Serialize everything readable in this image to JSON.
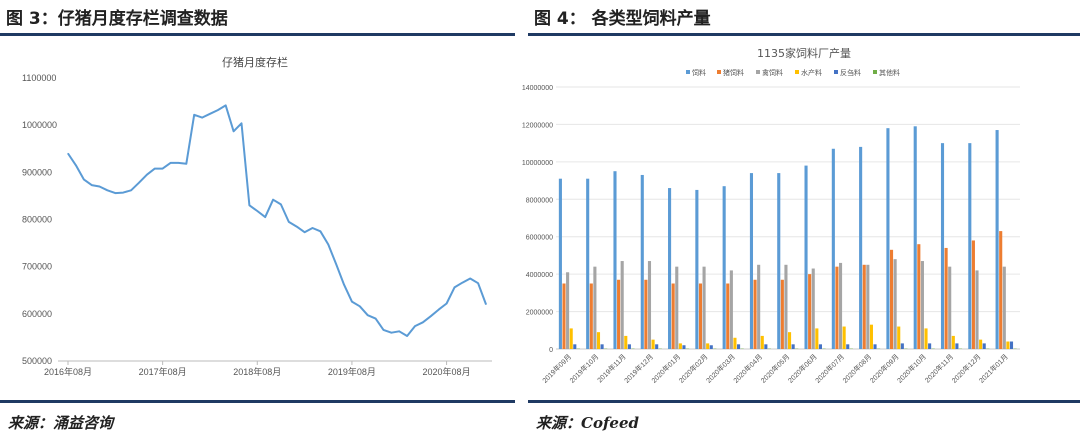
{
  "left": {
    "figure_title": "图 3：仔猪月度存栏调查数据",
    "source": "来源：涌益咨询",
    "chart_data": {
      "type": "line",
      "title": "仔猪月度存栏",
      "xlabel": "",
      "ylabel": "",
      "ylim": [
        500000,
        1100000
      ],
      "yticks": [
        500000,
        600000,
        700000,
        800000,
        900000,
        1000000,
        1100000
      ],
      "ytick_labels": [
        "500000",
        "600000",
        "700000",
        "800000",
        "900000",
        "1000000",
        "1100000"
      ],
      "xtick_labels": [
        "2016年08月",
        "2017年08月",
        "2018年08月",
        "2019年08月",
        "2020年08月"
      ],
      "xtick_index": [
        0,
        12,
        24,
        36,
        48
      ],
      "x_count": 54,
      "series": [
        {
          "color": "#5b9bd5",
          "values": [
            940000,
            915000,
            885000,
            873000,
            870000,
            862000,
            856000,
            857000,
            862000,
            878000,
            895000,
            908000,
            908000,
            920000,
            920000,
            918000,
            1022000,
            1016000,
            1024000,
            1032000,
            1042000,
            987000,
            1004000,
            830000,
            818000,
            805000,
            842000,
            832000,
            795000,
            785000,
            773000,
            782000,
            775000,
            747000,
            705000,
            662000,
            626000,
            616000,
            597000,
            590000,
            566000,
            560000,
            563000,
            553000,
            574000,
            582000,
            595000,
            609000,
            622000,
            656000,
            666000,
            675000,
            665000,
            620000
          ]
        }
      ]
    }
  },
  "right": {
    "figure_title": "图 4：   各类型饲料产量",
    "source": "来源：Cofeed",
    "chart_data": {
      "type": "bar",
      "title": "1135家饲料厂产量",
      "ylim": [
        0,
        14000000
      ],
      "yticks": [
        0,
        2000000,
        4000000,
        6000000,
        8000000,
        10000000,
        12000000,
        14000000
      ],
      "ytick_labels": [
        "0",
        "2000000",
        "4000000",
        "6000000",
        "8000000",
        "10000000",
        "12000000",
        "14000000"
      ],
      "categories": [
        "2019年09月",
        "2019年10月",
        "2019年11月",
        "2019年12月",
        "2020年01月",
        "2020年02月",
        "2020年03月",
        "2020年04月",
        "2020年05月",
        "2020年06月",
        "2020年07月",
        "2020年08月",
        "2020年09月",
        "2020年10月",
        "2020年11月",
        "2020年12月",
        "2021年01月"
      ],
      "legend_position": "top",
      "series": [
        {
          "name": "饲料",
          "color": "#5b9bd5",
          "values": [
            9100000,
            9100000,
            9500000,
            9300000,
            8600000,
            8500000,
            8700000,
            9400000,
            9400000,
            9800000,
            10700000,
            10800000,
            11800000,
            11900000,
            11000000,
            11000000,
            11700000
          ]
        },
        {
          "name": "猪饲料",
          "color": "#ed7d31",
          "values": [
            3500000,
            3500000,
            3700000,
            3700000,
            3500000,
            3500000,
            3500000,
            3700000,
            3700000,
            4000000,
            4400000,
            4500000,
            5300000,
            5600000,
            5400000,
            5800000,
            6300000
          ]
        },
        {
          "name": "禽饲料",
          "color": "#a5a5a5",
          "values": [
            4100000,
            4400000,
            4700000,
            4700000,
            4400000,
            4400000,
            4200000,
            4500000,
            4500000,
            4300000,
            4600000,
            4500000,
            4800000,
            4700000,
            4400000,
            4200000,
            4400000
          ]
        },
        {
          "name": "水产料",
          "color": "#ffc000",
          "values": [
            1100000,
            900000,
            700000,
            500000,
            300000,
            300000,
            600000,
            700000,
            900000,
            1100000,
            1200000,
            1300000,
            1200000,
            1100000,
            700000,
            500000,
            400000
          ]
        },
        {
          "name": "反刍料",
          "color": "#4472c4",
          "values": [
            250000,
            250000,
            250000,
            250000,
            200000,
            200000,
            250000,
            250000,
            250000,
            250000,
            250000,
            250000,
            300000,
            300000,
            300000,
            300000,
            400000
          ]
        },
        {
          "name": "其他料",
          "color": "#70ad47",
          "values": [
            20000,
            20000,
            20000,
            20000,
            20000,
            20000,
            20000,
            20000,
            20000,
            20000,
            20000,
            20000,
            20000,
            20000,
            20000,
            20000,
            20000
          ]
        }
      ]
    }
  }
}
